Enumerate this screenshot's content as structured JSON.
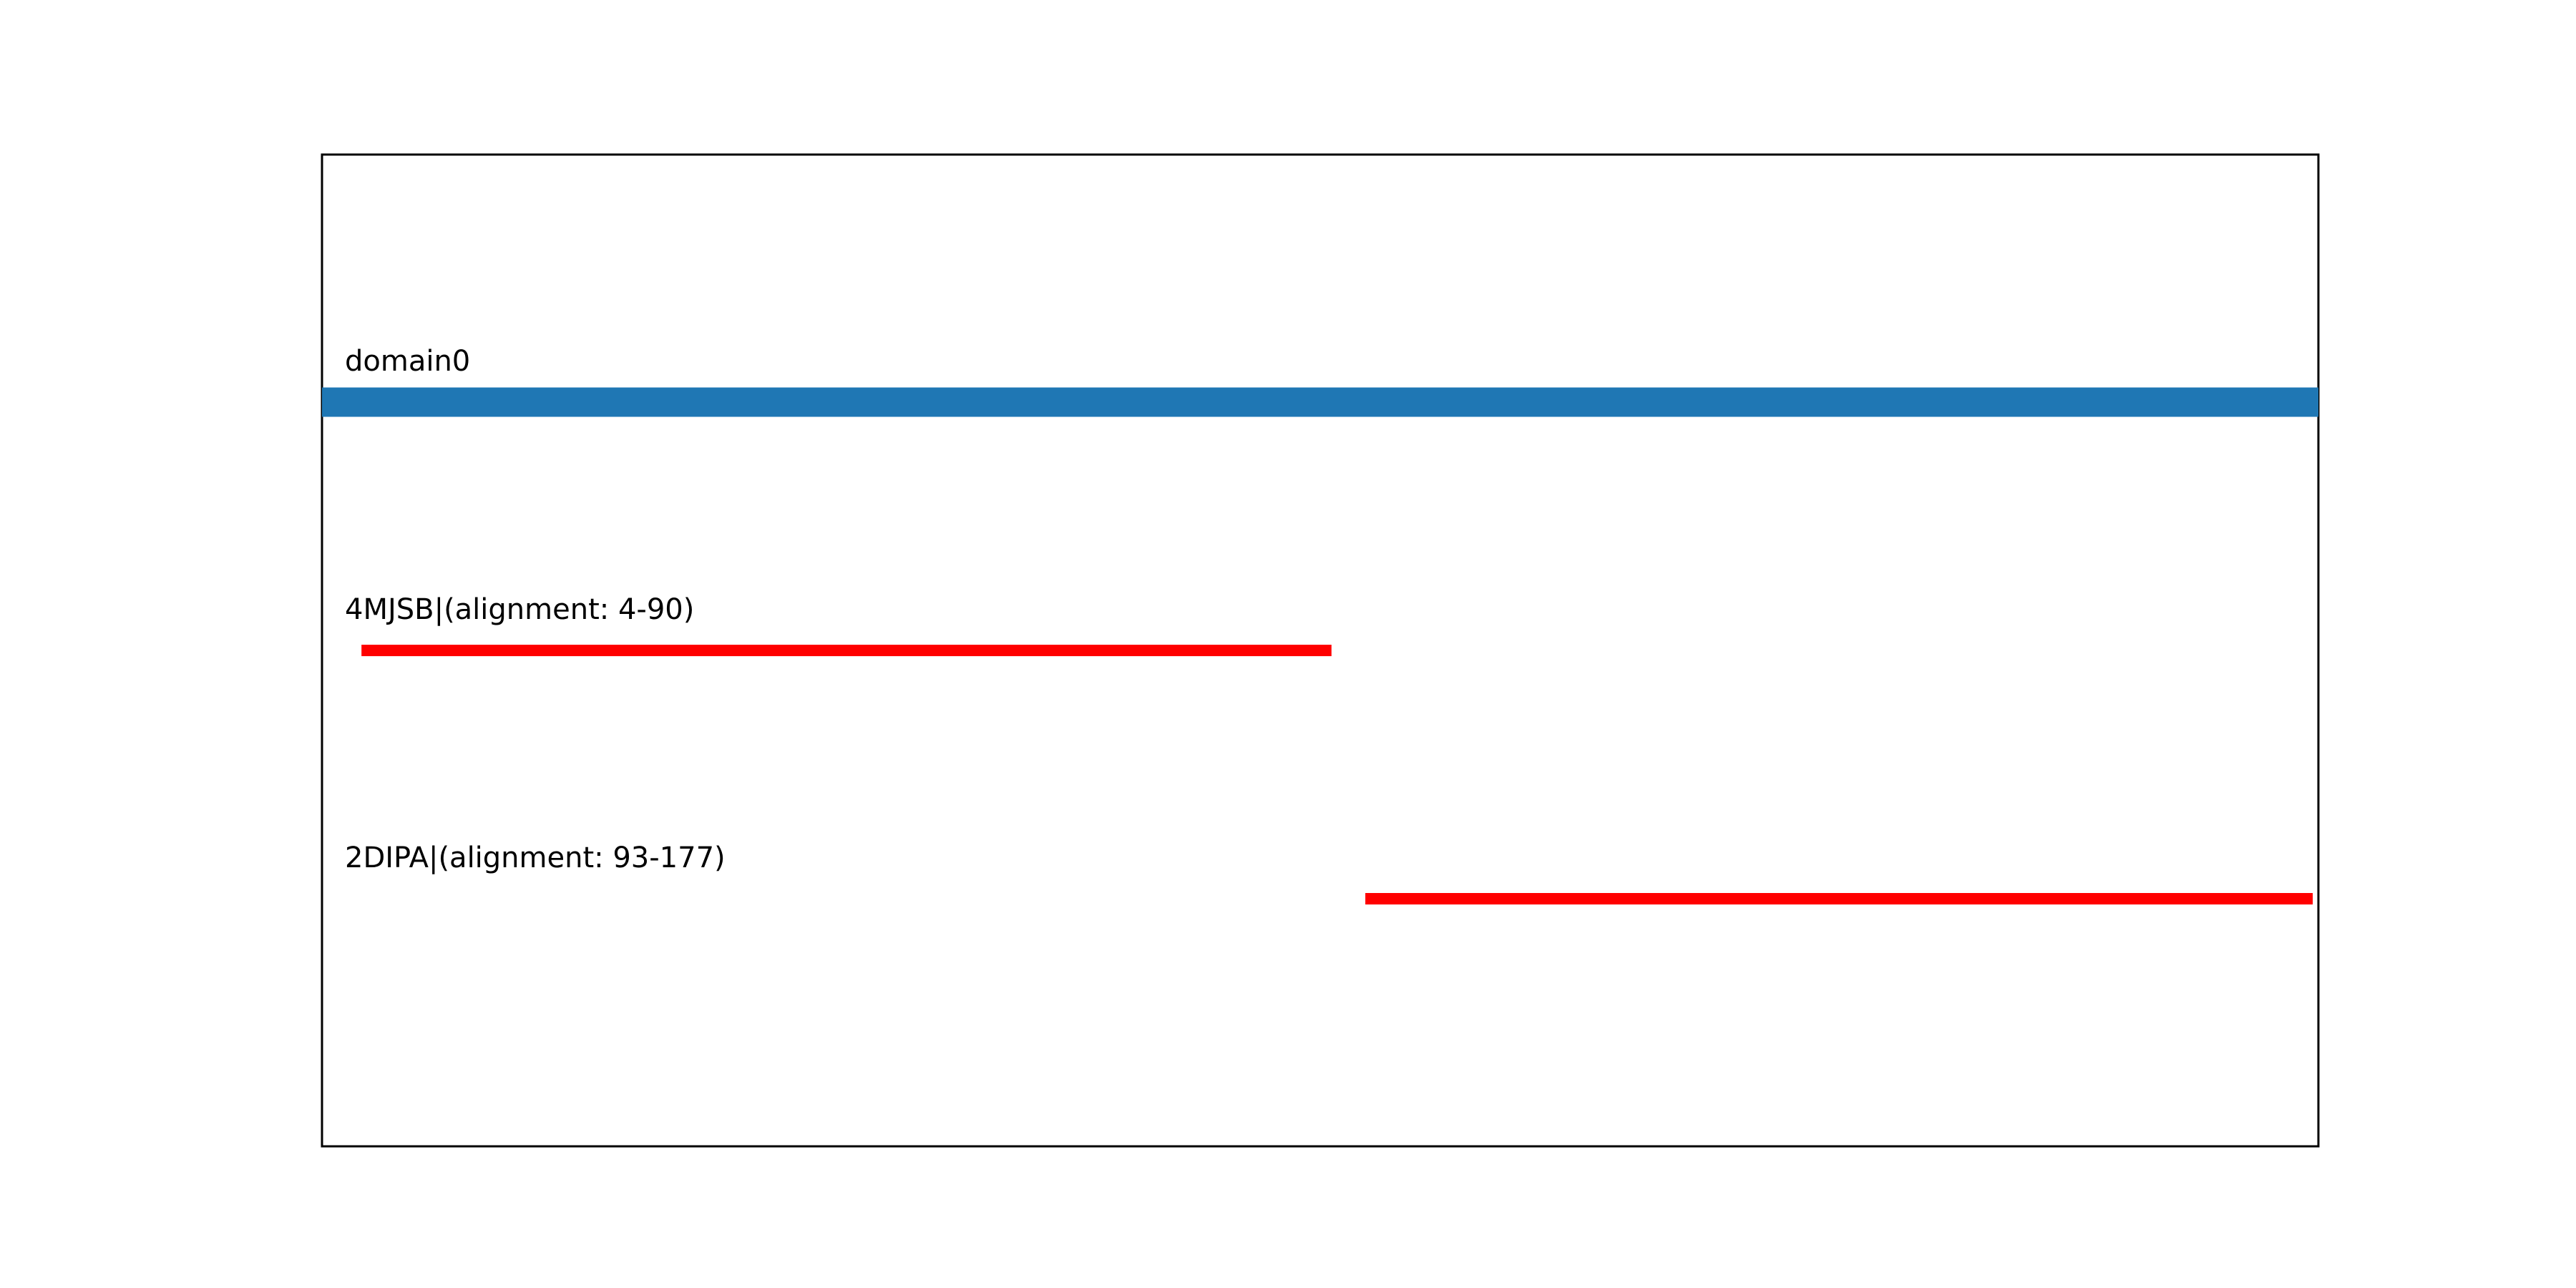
{
  "chart_data": {
    "type": "alignment-track",
    "xlim": [
      0.5,
      177.5
    ],
    "grid": false,
    "axes_ticks": false,
    "tracks": [
      {
        "label": "domain0",
        "start": 0.5,
        "end": 177.5,
        "color": "#1f77b4",
        "kind": "domain"
      },
      {
        "label": "4MJSB|(alignment: 4-90)",
        "start": 4,
        "end": 90,
        "color": "#ff0000",
        "kind": "alignment"
      },
      {
        "label": "2DIPA|(alignment: 93-177)",
        "start": 93,
        "end": 177,
        "color": "#ff0000",
        "kind": "alignment"
      }
    ]
  }
}
